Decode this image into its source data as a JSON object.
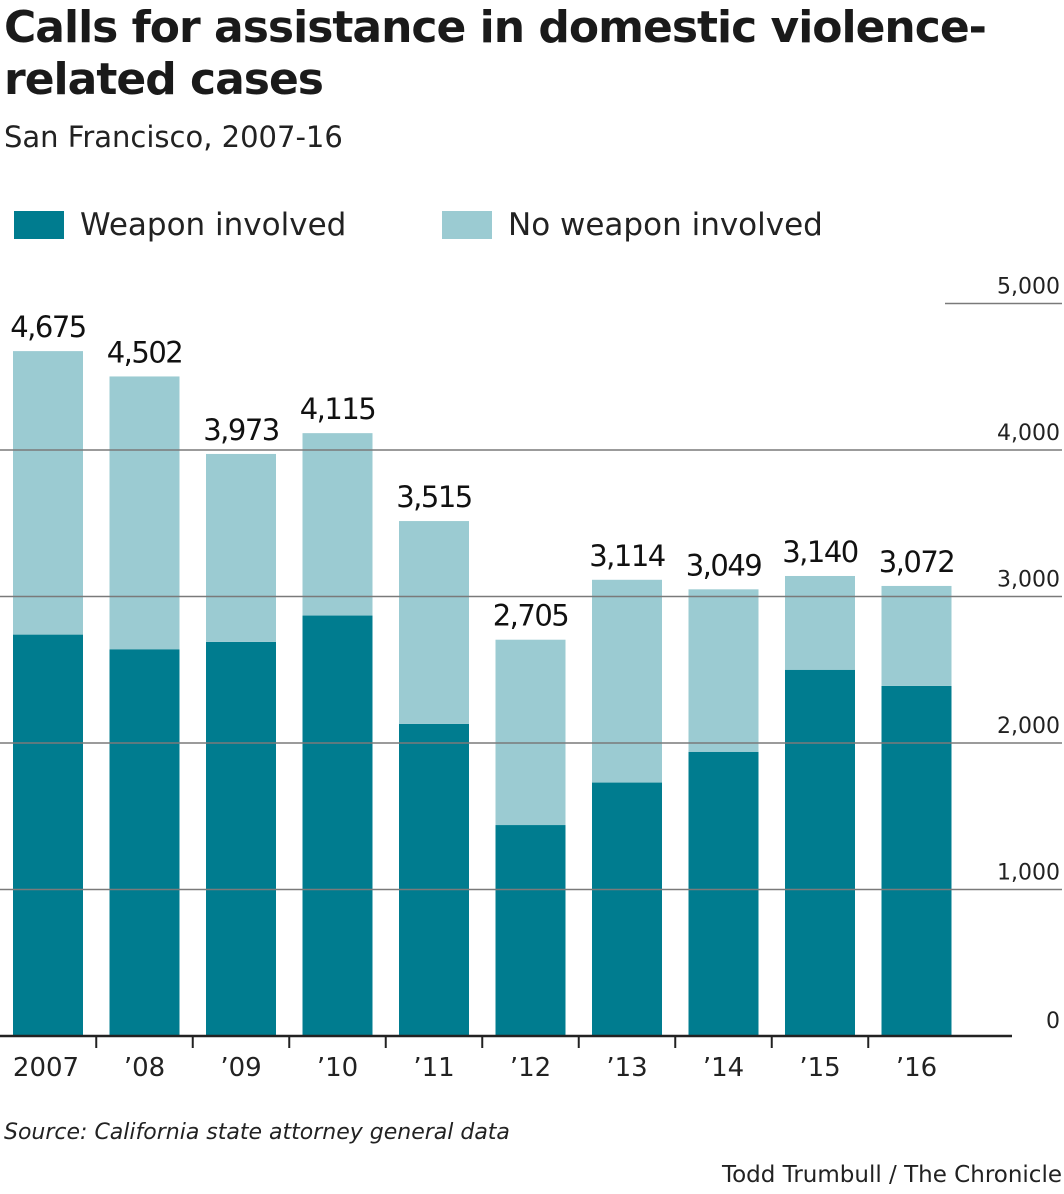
{
  "title": "Calls for assistance in domestic violence-related cases",
  "subtitle": "San Francisco, 2007-16",
  "source": "Source: California state attorney general data",
  "credit": "Todd Trumbull / The Chronicle",
  "colors": {
    "weapon": "#007c8f",
    "no_weapon": "#9bcbd2",
    "grid": "#7a7a7a"
  },
  "chart_data": {
    "type": "bar",
    "stacked": true,
    "categories": [
      "2007",
      "’08",
      "’09",
      "’10",
      "’11",
      "’12",
      "’13",
      "’14",
      "’15",
      "’16"
    ],
    "series": [
      {
        "name": "Weapon involved",
        "values": [
          2740,
          2640,
          2690,
          2870,
          2130,
          1440,
          1730,
          1940,
          2500,
          2390
        ]
      },
      {
        "name": "No weapon involved",
        "values": [
          1935,
          1862,
          1283,
          1245,
          1385,
          1265,
          1384,
          1109,
          640,
          682
        ]
      }
    ],
    "totals": [
      4675,
      4502,
      3973,
      4115,
      3515,
      2705,
      3114,
      3049,
      3140,
      3072
    ],
    "total_labels": [
      "4,675",
      "4,502",
      "3,973",
      "4,115",
      "3,515",
      "2,705",
      "3,114",
      "3,049",
      "3,140",
      "3,072"
    ],
    "yticks": [
      0,
      1000,
      2000,
      3000,
      4000,
      5000
    ],
    "ytick_labels": [
      "0",
      "1,000",
      "2,000",
      "3,000",
      "4,000",
      "5,000"
    ],
    "ylim": [
      0,
      5000
    ],
    "legend_position": "top-left",
    "grid": true
  }
}
